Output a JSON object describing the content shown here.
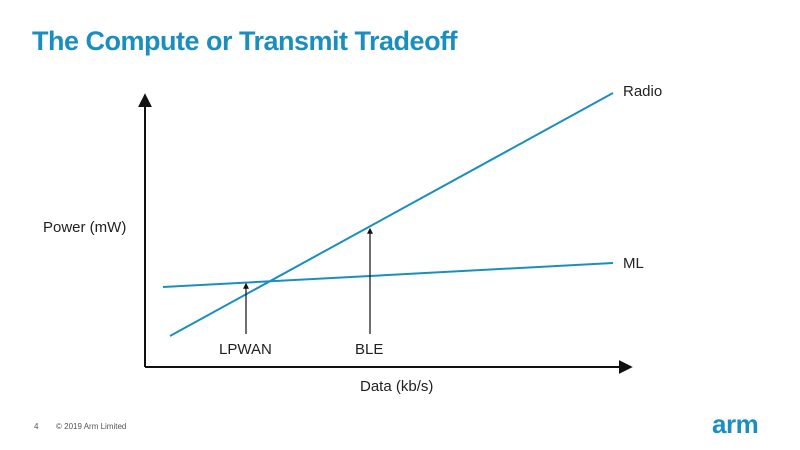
{
  "slide": {
    "title": "The Compute or Transmit Tradeoff",
    "page_number": "4",
    "copyright": "© 2019 Arm Limited",
    "logo_text": "arm",
    "accent_color": "#1a8fbf"
  },
  "diagram": {
    "y_axis_label": "Power (mW)",
    "x_axis_label": "Data (kb/s)",
    "lines": [
      {
        "name": "Radio",
        "label": "Radio"
      },
      {
        "name": "ML",
        "label": "ML"
      }
    ],
    "markers": [
      {
        "name": "LPWAN",
        "label": "LPWAN"
      },
      {
        "name": "BLE",
        "label": "BLE"
      }
    ]
  }
}
